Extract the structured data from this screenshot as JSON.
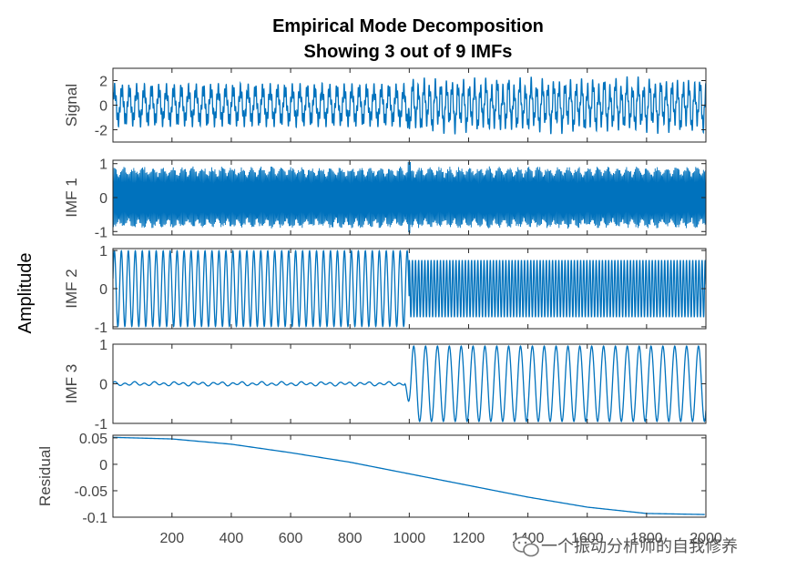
{
  "chart_data": {
    "type": "line",
    "title": [
      "Empirical Mode Decomposition",
      "Showing 3 out of 9 IMFs"
    ],
    "ylabel": "Amplitude",
    "xlim": [
      1,
      2000
    ],
    "xticks": [
      200,
      400,
      600,
      800,
      1000,
      1200,
      1400,
      1600,
      1800,
      2000
    ],
    "line_color": "#0072BD",
    "panels": [
      {
        "name": "Signal",
        "ylim": [
          -3,
          3
        ],
        "yticks": [
          -2,
          0,
          2
        ],
        "yticklabels": [
          "-2",
          "0",
          "2"
        ],
        "description": "sum of components; period about 25 samples before x=1000, about 19 samples after"
      },
      {
        "name": "IMF 1",
        "ylim": [
          -1.1,
          1.1
        ],
        "yticks": [
          -1,
          0,
          1
        ],
        "yticklabels": [
          "-1",
          "0",
          "1"
        ],
        "description": "high-frequency oscillation, amplitude about 0.95, spike near x=1000"
      },
      {
        "name": "IMF 2",
        "ylim": [
          -1.05,
          1.05
        ],
        "yticks": [
          -1,
          0,
          1
        ],
        "yticklabels": [
          "-1",
          "0",
          "1"
        ],
        "segments": [
          {
            "x_start": 1,
            "x_end": 1000,
            "period": 23.5,
            "amplitude": 1.0
          },
          {
            "x_start": 1000,
            "x_end": 2000,
            "period": 10.5,
            "amplitude": 0.75
          }
        ]
      },
      {
        "name": "IMF 3",
        "ylim": [
          -1,
          1
        ],
        "yticks": [
          -1,
          0,
          1
        ],
        "yticklabels": [
          "-1",
          "0",
          "1"
        ],
        "segments": [
          {
            "x_start": 1,
            "x_end": 985,
            "amplitude": 0.05,
            "description": "small noisy oscillation near zero"
          },
          {
            "x_start": 985,
            "x_end": 2000,
            "period": 40,
            "amplitude": 0.95
          }
        ]
      },
      {
        "name": "Residual",
        "ylim": [
          -0.1,
          0.055
        ],
        "yticks": [
          -0.1,
          -0.05,
          0,
          0.05
        ],
        "yticklabels": [
          "-0.1",
          "-0.05",
          "0",
          "0.05"
        ],
        "points": [
          [
            1,
            0.051
          ],
          [
            200,
            0.048
          ],
          [
            400,
            0.038
          ],
          [
            600,
            0.022
          ],
          [
            800,
            0.004
          ],
          [
            1000,
            -0.018
          ],
          [
            1200,
            -0.04
          ],
          [
            1400,
            -0.062
          ],
          [
            1600,
            -0.081
          ],
          [
            1800,
            -0.093
          ],
          [
            2000,
            -0.095
          ]
        ]
      }
    ],
    "grid": false
  },
  "watermark": {
    "text": "一个振动分析师的自我修养",
    "icon": "wechat-icon"
  }
}
